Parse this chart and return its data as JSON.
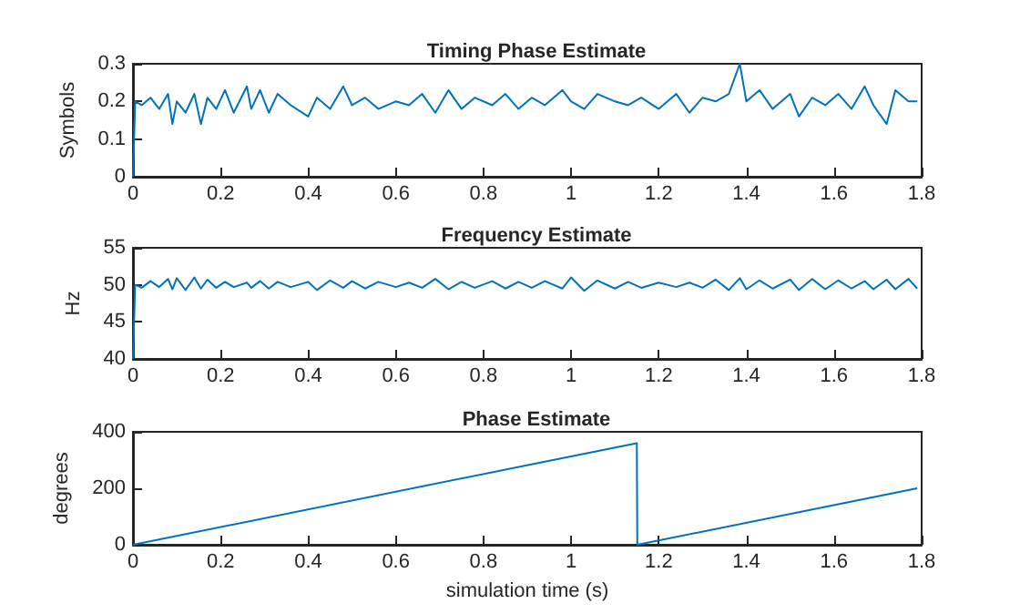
{
  "chart_data": [
    {
      "type": "line",
      "title": "Timing Phase Estimate",
      "ylabel": "Symbols",
      "x": [
        0,
        0.005,
        0.02,
        0.04,
        0.06,
        0.08,
        0.09,
        0.1,
        0.12,
        0.14,
        0.155,
        0.17,
        0.19,
        0.21,
        0.23,
        0.26,
        0.27,
        0.29,
        0.31,
        0.33,
        0.36,
        0.4,
        0.42,
        0.45,
        0.48,
        0.5,
        0.53,
        0.56,
        0.6,
        0.63,
        0.66,
        0.69,
        0.72,
        0.75,
        0.78,
        0.82,
        0.85,
        0.88,
        0.91,
        0.94,
        0.98,
        1.0,
        1.03,
        1.06,
        1.1,
        1.13,
        1.16,
        1.2,
        1.24,
        1.27,
        1.3,
        1.33,
        1.36,
        1.385,
        1.4,
        1.43,
        1.46,
        1.5,
        1.52,
        1.55,
        1.58,
        1.61,
        1.64,
        1.67,
        1.69,
        1.72,
        1.74,
        1.77,
        1.79
      ],
      "series": [
        {
          "color": "#0072bd",
          "values": [
            0,
            0.2,
            0.19,
            0.21,
            0.18,
            0.22,
            0.14,
            0.2,
            0.17,
            0.22,
            0.14,
            0.21,
            0.18,
            0.23,
            0.17,
            0.24,
            0.18,
            0.23,
            0.17,
            0.22,
            0.19,
            0.16,
            0.21,
            0.18,
            0.24,
            0.19,
            0.21,
            0.18,
            0.2,
            0.19,
            0.22,
            0.17,
            0.23,
            0.18,
            0.21,
            0.19,
            0.22,
            0.18,
            0.21,
            0.19,
            0.23,
            0.2,
            0.18,
            0.22,
            0.2,
            0.19,
            0.21,
            0.18,
            0.22,
            0.17,
            0.21,
            0.2,
            0.22,
            0.3,
            0.2,
            0.23,
            0.18,
            0.22,
            0.16,
            0.21,
            0.19,
            0.22,
            0.18,
            0.24,
            0.19,
            0.14,
            0.23,
            0.2,
            0.2
          ]
        }
      ],
      "xlim": [
        0,
        1.8
      ],
      "xticks": [
        0,
        0.2,
        0.4,
        0.6,
        0.8,
        1,
        1.2,
        1.4,
        1.6,
        1.8
      ],
      "ylim": [
        0,
        0.3
      ],
      "yticks": [
        0,
        0.1,
        0.2,
        0.3
      ]
    },
    {
      "type": "line",
      "title": "Frequency Estimate",
      "ylabel": "Hz",
      "x": [
        0,
        0.005,
        0.02,
        0.04,
        0.06,
        0.08,
        0.09,
        0.1,
        0.12,
        0.14,
        0.155,
        0.17,
        0.19,
        0.21,
        0.23,
        0.26,
        0.27,
        0.29,
        0.31,
        0.33,
        0.36,
        0.4,
        0.42,
        0.45,
        0.48,
        0.5,
        0.53,
        0.56,
        0.6,
        0.63,
        0.66,
        0.69,
        0.72,
        0.75,
        0.78,
        0.82,
        0.85,
        0.88,
        0.91,
        0.94,
        0.98,
        1.0,
        1.03,
        1.06,
        1.1,
        1.13,
        1.16,
        1.2,
        1.24,
        1.27,
        1.3,
        1.33,
        1.36,
        1.385,
        1.4,
        1.43,
        1.46,
        1.5,
        1.52,
        1.55,
        1.58,
        1.61,
        1.64,
        1.67,
        1.69,
        1.72,
        1.74,
        1.77,
        1.79
      ],
      "series": [
        {
          "color": "#0072bd",
          "values": [
            40,
            50,
            49.6,
            50.5,
            49.7,
            50.8,
            49.4,
            50.9,
            49.3,
            51,
            49.5,
            50.7,
            49.6,
            50.4,
            49.7,
            50.3,
            49.6,
            50.5,
            49.5,
            50.4,
            49.7,
            50.4,
            49.3,
            50.6,
            49.6,
            50.5,
            49.5,
            50.4,
            49.7,
            50.3,
            49.6,
            50.8,
            49.4,
            50.4,
            49.6,
            50.5,
            49.5,
            50.4,
            49.6,
            50.5,
            49.5,
            51,
            49.2,
            50.6,
            49.5,
            50.4,
            49.6,
            50.3,
            49.7,
            50.3,
            49.6,
            50.7,
            49.3,
            50.9,
            49.4,
            50.6,
            49.5,
            50.7,
            49.3,
            50.8,
            49.4,
            50.6,
            49.5,
            50.5,
            49.4,
            50.7,
            49.4,
            50.8,
            49.5
          ]
        }
      ],
      "xlim": [
        0,
        1.8
      ],
      "xticks": [
        0,
        0.2,
        0.4,
        0.6,
        0.8,
        1,
        1.2,
        1.4,
        1.6,
        1.8
      ],
      "ylim": [
        40,
        55
      ],
      "yticks": [
        40,
        45,
        50,
        55
      ]
    },
    {
      "type": "line",
      "title": "Phase Estimate",
      "xlabel": "simulation time (s)",
      "ylabel": "degrees",
      "x": [
        0,
        1.15,
        1.151,
        1.79
      ],
      "series": [
        {
          "color": "#0072bd",
          "values": [
            0,
            360,
            0,
            200
          ]
        }
      ],
      "xlim": [
        0,
        1.8
      ],
      "xticks": [
        0,
        0.2,
        0.4,
        0.6,
        0.8,
        1,
        1.2,
        1.4,
        1.6,
        1.8
      ],
      "ylim": [
        0,
        400
      ],
      "yticks": [
        0,
        200,
        400
      ]
    }
  ]
}
